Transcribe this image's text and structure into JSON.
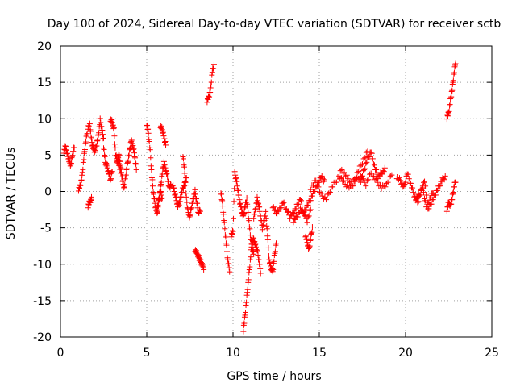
{
  "chart_data": {
    "type": "scatter",
    "title": "Day 100 of 2024, Sidereal Day-to-day VTEC variation (SDTVAR) for receiver sctb",
    "xlabel": "GPS time / hours",
    "ylabel": "SDTVAR / TECUs",
    "xlim": [
      0,
      25
    ],
    "ylim": [
      -20,
      20
    ],
    "xticks": [
      0,
      5,
      10,
      15,
      20,
      25
    ],
    "yticks": [
      -20,
      -15,
      -10,
      -5,
      0,
      5,
      10,
      15,
      20
    ],
    "xtick_labels": [
      "0",
      "5",
      "10",
      "15",
      "20",
      "25"
    ],
    "ytick_labels": [
      "-20",
      "-15",
      "-10",
      "-5",
      "0",
      "5",
      "10",
      "15",
      "20"
    ],
    "grid": true,
    "marker": "+",
    "color": "#ff0000",
    "series": [
      {
        "name": "SDTVAR",
        "segments": [
          {
            "x": [
              0.2,
              0.3,
              0.4,
              0.5,
              0.6,
              0.7,
              0.8
            ],
            "y": [
              5.5,
              6.2,
              5.0,
              4.2,
              3.6,
              5.2,
              6.0
            ]
          },
          {
            "x": [
              1.05,
              1.15,
              1.25,
              1.35,
              1.45,
              1.55
            ],
            "y": [
              0.3,
              0.8,
              2.0,
              4.5,
              6.5,
              8.2
            ]
          },
          {
            "x": [
              1.6,
              1.7,
              1.8,
              1.9,
              2.0,
              2.1,
              2.2,
              2.3,
              2.4,
              2.5
            ],
            "y": [
              8.8,
              9.3,
              7.0,
              6.0,
              5.5,
              6.5,
              7.8,
              9.8,
              8.5,
              7.2
            ]
          },
          {
            "x": [
              1.6,
              1.7,
              1.8
            ],
            "y": [
              -2.0,
              -1.4,
              -1.0
            ]
          },
          {
            "x": [
              2.5,
              2.6,
              2.7,
              2.8,
              2.9,
              3.0
            ],
            "y": [
              6.2,
              4.0,
              3.5,
              2.5,
              1.5,
              3.0
            ]
          },
          {
            "x": [
              2.9,
              3.0,
              3.1,
              3.2,
              3.3,
              3.4,
              3.5
            ],
            "y": [
              9.9,
              9.5,
              8.5,
              5.0,
              4.0,
              3.8,
              2.5
            ]
          },
          {
            "x": [
              3.3,
              3.4,
              3.5,
              3.6,
              3.7,
              3.8,
              3.9,
              4.0,
              4.1,
              4.2,
              4.3,
              4.4
            ],
            "y": [
              4.5,
              5.0,
              3.0,
              1.5,
              0.5,
              2.5,
              4.0,
              5.5,
              7.0,
              6.2,
              5.0,
              3.0
            ]
          },
          {
            "x": [
              5.0,
              5.1,
              5.2,
              5.3,
              5.4,
              5.5,
              5.6,
              5.7,
              5.8,
              5.9
            ],
            "y": [
              9.3,
              8.0,
              5.5,
              2.0,
              -0.5,
              -2.0,
              -3.0,
              -1.5,
              0.0,
              -1.0
            ]
          },
          {
            "x": [
              5.6,
              5.7,
              5.8,
              5.9,
              6.0,
              6.1,
              6.2,
              6.3,
              6.4
            ],
            "y": [
              -2.5,
              -1.0,
              0.5,
              2.5,
              4.0,
              3.0,
              2.0,
              0.5,
              1.0
            ]
          },
          {
            "x": [
              5.8,
              5.9,
              6.0,
              6.1
            ],
            "y": [
              9.0,
              8.5,
              7.5,
              6.5
            ]
          },
          {
            "x": [
              6.5,
              6.6,
              6.7,
              6.8,
              6.9,
              7.0,
              7.1,
              7.2,
              7.3
            ],
            "y": [
              1.0,
              0.0,
              -1.0,
              -2.0,
              -1.5,
              -0.5,
              0.5,
              1.0,
              2.0
            ]
          },
          {
            "x": [
              7.1,
              7.2,
              7.3,
              7.4,
              7.5,
              7.6,
              7.7,
              7.8,
              7.9,
              8.0,
              8.1
            ],
            "y": [
              5.0,
              2.5,
              -1.0,
              -3.0,
              -3.5,
              -2.0,
              -1.0,
              0.0,
              -1.5,
              -3.0,
              -2.5
            ]
          },
          {
            "x": [
              7.8,
              7.9,
              8.0,
              8.1,
              8.2,
              8.3
            ],
            "y": [
              -8.0,
              -8.5,
              -9.0,
              -9.5,
              -10.0,
              -10.5
            ]
          },
          {
            "x": [
              8.5,
              8.6,
              8.7,
              8.8,
              8.9
            ],
            "y": [
              12.5,
              13.0,
              14.0,
              16.5,
              17.3
            ]
          },
          {
            "x": [
              9.3,
              9.4,
              9.5,
              9.6,
              9.7,
              9.8
            ],
            "y": [
              0.0,
              -2.0,
              -4.5,
              -7.0,
              -9.5,
              -10.8
            ]
          },
          {
            "x": [
              9.9,
              10.0,
              10.1,
              10.2,
              10.3,
              10.4,
              10.5,
              10.6,
              10.7,
              10.8,
              10.9,
              11.0,
              11.1,
              11.2
            ],
            "y": [
              -6.0,
              -5.5,
              2.5,
              1.5,
              0.0,
              -1.5,
              -2.5,
              -3.5,
              -2.0,
              -1.0,
              -3.5,
              -6.0,
              -7.5,
              -8.5
            ]
          },
          {
            "x": [
              10.6,
              10.7,
              10.8,
              10.9,
              11.0,
              11.1,
              11.2,
              11.3,
              11.4,
              11.5,
              11.6
            ],
            "y": [
              -19.0,
              -17.0,
              -14.5,
              -12.0,
              -9.5,
              -7.0,
              -6.5,
              -7.5,
              -8.0,
              -9.5,
              -11.0
            ]
          },
          {
            "x": [
              11.2,
              11.3,
              11.4,
              11.5,
              11.6,
              11.7,
              11.8,
              11.9,
              12.0,
              12.1,
              12.2,
              12.3,
              12.4,
              12.5
            ],
            "y": [
              -3.5,
              -2.5,
              -1.0,
              -2.0,
              -3.5,
              -5.0,
              -4.0,
              -3.0,
              -6.0,
              -9.5,
              -10.5,
              -11.0,
              -9.0,
              -7.0
            ]
          },
          {
            "x": [
              12.3,
              12.5,
              12.7,
              12.9,
              13.1,
              13.3,
              13.5,
              13.7,
              13.9,
              14.1,
              14.3,
              14.5
            ],
            "y": [
              -2.0,
              -3.0,
              -2.5,
              -1.5,
              -2.5,
              -3.5,
              -3.0,
              -2.0,
              -1.0,
              -3.0,
              -4.0,
              -2.5
            ]
          },
          {
            "x": [
              13.5,
              13.7,
              13.9,
              14.1,
              14.3,
              14.5,
              14.7,
              14.9,
              15.1,
              15.3
            ],
            "y": [
              -4.0,
              -3.5,
              -2.5,
              -3.0,
              -2.0,
              -1.0,
              0.0,
              1.0,
              2.0,
              1.5
            ]
          },
          {
            "x": [
              14.2,
              14.3,
              14.4,
              14.5,
              14.6
            ],
            "y": [
              -6.0,
              -7.0,
              -8.0,
              -6.5,
              -5.0
            ]
          },
          {
            "x": [
              14.5,
              14.8,
              15.1,
              15.4,
              15.7,
              16.0,
              16.3,
              16.6,
              16.9,
              17.2,
              17.5,
              17.8
            ],
            "y": [
              0.5,
              1.5,
              -0.5,
              -1.0,
              0.5,
              1.5,
              3.0,
              2.0,
              1.0,
              2.5,
              4.0,
              5.5
            ]
          },
          {
            "x": [
              16.2,
              16.5,
              16.8,
              17.1,
              17.4,
              17.7,
              18.0,
              18.3,
              18.6,
              18.9,
              19.2
            ],
            "y": [
              2.0,
              1.0,
              0.5,
              1.5,
              2.0,
              1.0,
              2.5,
              1.5,
              0.5,
              1.0,
              2.5
            ]
          },
          {
            "x": [
              17.4,
              17.6,
              17.8,
              18.0,
              18.2,
              18.4,
              18.6,
              18.8
            ],
            "y": [
              1.5,
              3.0,
              4.5,
              5.5,
              3.5,
              2.0,
              2.5,
              3.0
            ]
          },
          {
            "x": [
              19.5,
              19.7,
              19.9,
              20.1,
              20.3,
              20.5,
              20.7,
              20.9,
              21.1,
              21.3,
              21.5,
              21.7,
              21.9,
              22.1,
              22.3
            ],
            "y": [
              2.0,
              1.5,
              0.5,
              2.5,
              1.0,
              -0.5,
              -1.5,
              0.0,
              1.5,
              -2.5,
              -1.5,
              -0.5,
              0.5,
              1.5,
              2.0
            ]
          },
          {
            "x": [
              20.6,
              20.8,
              21.0,
              21.2,
              21.4,
              21.6
            ],
            "y": [
              -1.0,
              -0.5,
              0.5,
              -2.0,
              -1.0,
              0.0
            ]
          },
          {
            "x": [
              22.4,
              22.5,
              22.6,
              22.7,
              22.8,
              22.9
            ],
            "y": [
              -2.5,
              -1.5,
              -2.0,
              -1.0,
              0.5,
              1.5
            ]
          },
          {
            "x": [
              22.4,
              22.5,
              22.6,
              22.7,
              22.8,
              22.9
            ],
            "y": [
              10.2,
              10.8,
              12.5,
              14.0,
              16.0,
              17.8
            ]
          }
        ]
      }
    ]
  }
}
